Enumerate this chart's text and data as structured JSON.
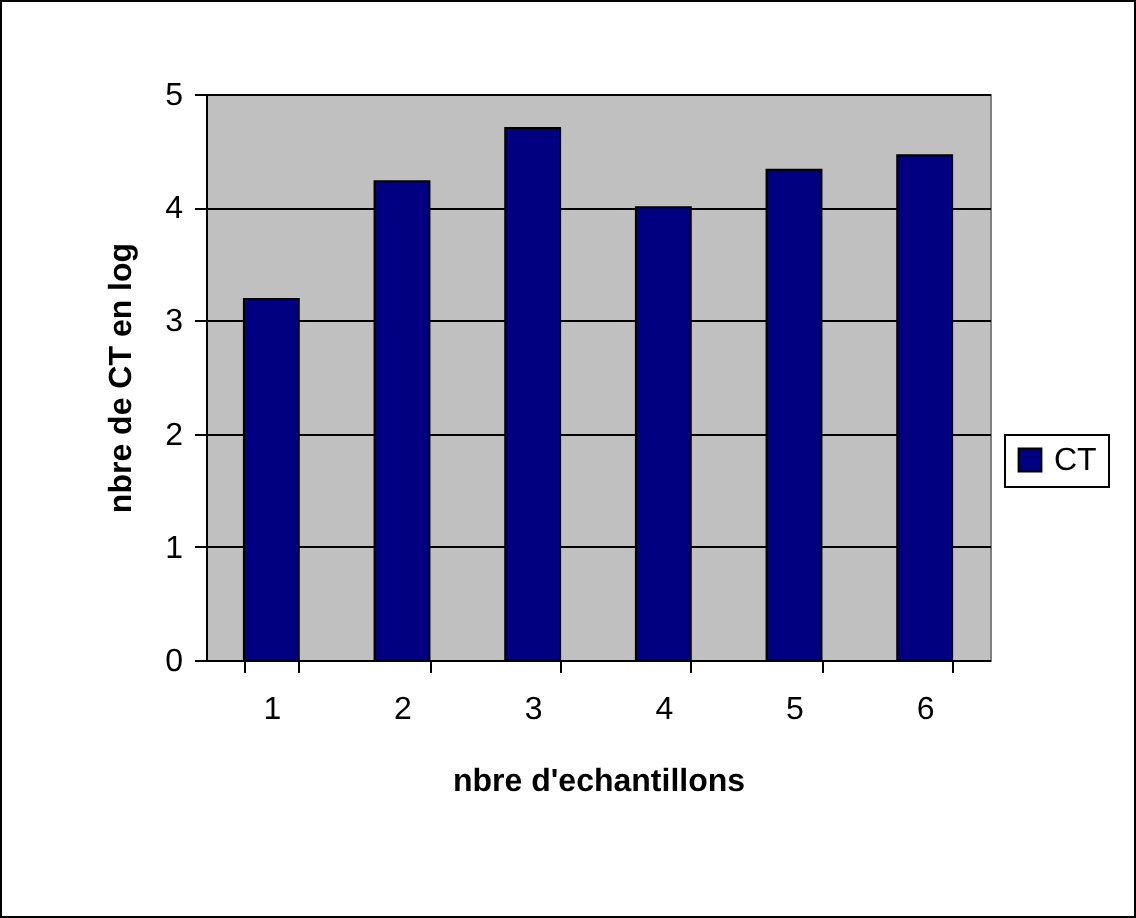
{
  "chart_data": {
    "type": "bar",
    "xlabel": "nbre d'echantillons",
    "ylabel": "nbre de CT en log",
    "categories": [
      "1",
      "2",
      "3",
      "4",
      "5",
      "6"
    ],
    "series": [
      {
        "name": "CT",
        "color": "#000080",
        "values": [
          3.19,
          4.23,
          4.7,
          4.0,
          4.33,
          4.46
        ]
      }
    ],
    "ylim": [
      0,
      5
    ],
    "yticks": [
      0,
      1,
      2,
      3,
      4,
      5
    ],
    "grid": "y",
    "legend": "right"
  }
}
